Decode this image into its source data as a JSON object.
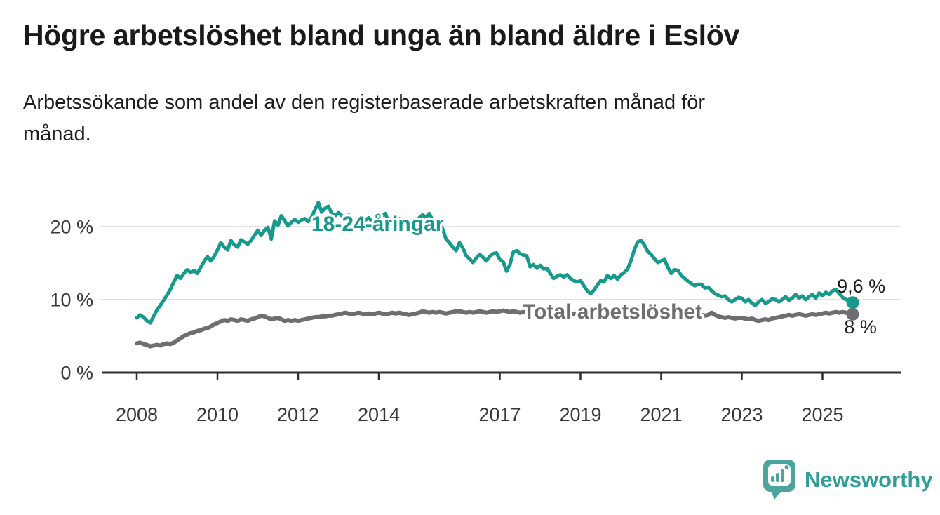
{
  "header": {
    "title": "Högre arbetslöshet bland unga än bland äldre i Eslöv",
    "subtitle_lines": [
      "Arbetssökande som andel av den registerbaserade arbetskraften månad för",
      "månad."
    ]
  },
  "chart_data": {
    "type": "line",
    "unit": "%",
    "grid": "horizontal",
    "x_axis": {
      "range_start": 2008.0,
      "range_end": 2025.75,
      "ticks": [
        {
          "year": 2008,
          "label": "2008"
        },
        {
          "year": 2010,
          "label": "2010"
        },
        {
          "year": 2012,
          "label": "2012"
        },
        {
          "year": 2014,
          "label": "2014"
        },
        {
          "year": 2017,
          "label": "2017"
        },
        {
          "year": 2019,
          "label": "2019"
        },
        {
          "year": 2021,
          "label": "2021"
        },
        {
          "year": 2023,
          "label": "2023"
        },
        {
          "year": 2025,
          "label": "2025"
        }
      ]
    },
    "y_axis": {
      "min": 0,
      "max": 24,
      "ticks": [
        {
          "value": 0,
          "label": "0 %"
        },
        {
          "value": 10,
          "label": "10 %"
        },
        {
          "value": 20,
          "label": "20 %"
        }
      ]
    },
    "series": [
      {
        "name": "18-24-åringar",
        "color": "#17998c",
        "end_label": "9,6 %",
        "end_value": 9.6,
        "start_year": 2008.0,
        "points_per_year": 12,
        "values": [
          7.5,
          7.9,
          7.6,
          7.1,
          6.8,
          7.7,
          8.6,
          9.2,
          9.9,
          10.6,
          11.4,
          12.4,
          13.3,
          12.9,
          13.6,
          14.1,
          13.7,
          14.0,
          13.6,
          14.4,
          15.2,
          15.9,
          15.3,
          15.9,
          16.8,
          17.8,
          17.2,
          16.8,
          18.1,
          17.5,
          17.2,
          18.2,
          17.9,
          17.6,
          18.1,
          18.8,
          19.5,
          18.8,
          19.5,
          19.9,
          18.3,
          20.8,
          20.2,
          21.5,
          20.8,
          20.1,
          20.6,
          21.0,
          20.6,
          20.9,
          21.1,
          20.7,
          21.3,
          22.3,
          23.3,
          22.0,
          22.5,
          22.8,
          21.8,
          21.5,
          21.9,
          21.5,
          21.2,
          21.6,
          20.3,
          19.8,
          21.0,
          20.4,
          20.9,
          21.2,
          20.7,
          19.3,
          21.1,
          21.5,
          21.8,
          20.3,
          19.6,
          20.7,
          21.1,
          20.8,
          21.0,
          20.5,
          19.7,
          19.2,
          21.2,
          21.6,
          21.3,
          21.8,
          20.9,
          20.5,
          20.8,
          19.7,
          18.3,
          17.8,
          17.2,
          16.7,
          17.8,
          17.1,
          16.0,
          15.6,
          15.1,
          15.7,
          16.2,
          15.8,
          15.3,
          15.9,
          16.3,
          16.4,
          15.5,
          15.2,
          13.9,
          14.8,
          16.5,
          16.7,
          16.3,
          16.1,
          16.0,
          14.5,
          14.8,
          14.3,
          14.7,
          14.2,
          14.3,
          13.6,
          12.9,
          13.2,
          13.4,
          13.1,
          13.4,
          12.9,
          12.6,
          12.4,
          12.6,
          11.9,
          11.2,
          10.8,
          11.3,
          12.0,
          12.6,
          12.4,
          13.3,
          12.9,
          13.3,
          12.8,
          13.4,
          13.7,
          14.2,
          15.3,
          16.8,
          17.9,
          18.1,
          17.5,
          16.6,
          16.2,
          15.6,
          15.1,
          15.3,
          15.5,
          14.4,
          13.6,
          14.1,
          14.0,
          13.3,
          12.9,
          12.5,
          12.2,
          11.9,
          12.1,
          12.1,
          11.6,
          11.7,
          11.2,
          10.8,
          10.6,
          10.4,
          10.5,
          10.0,
          9.7,
          10.0,
          10.3,
          10.2,
          9.7,
          10.0,
          9.5,
          9.2,
          9.7,
          10.0,
          9.5,
          9.7,
          10.1,
          10.0,
          9.7,
          10.0,
          10.4,
          9.9,
          10.2,
          10.7,
          10.2,
          10.5,
          10.0,
          10.4,
          10.7,
          10.2,
          10.9,
          10.5,
          11.0,
          10.7,
          11.2,
          11.4,
          10.8,
          10.3,
          10.0,
          9.9,
          9.6
        ]
      },
      {
        "name": "Total arbetslöshet",
        "color": "#6e6e72",
        "end_label": "8 %",
        "end_value": 8.0,
        "start_year": 2008.0,
        "points_per_year": 12,
        "values": [
          4.0,
          4.1,
          3.9,
          3.8,
          3.6,
          3.7,
          3.8,
          3.7,
          3.9,
          4.0,
          3.9,
          4.1,
          4.4,
          4.7,
          5.0,
          5.2,
          5.4,
          5.5,
          5.7,
          5.8,
          6.0,
          6.1,
          6.3,
          6.6,
          6.8,
          7.0,
          7.2,
          7.1,
          7.3,
          7.2,
          7.1,
          7.3,
          7.2,
          7.1,
          7.3,
          7.4,
          7.6,
          7.8,
          7.7,
          7.5,
          7.3,
          7.4,
          7.5,
          7.3,
          7.1,
          7.2,
          7.1,
          7.2,
          7.1,
          7.2,
          7.3,
          7.4,
          7.5,
          7.6,
          7.6,
          7.7,
          7.7,
          7.8,
          7.8,
          7.9,
          8.0,
          8.1,
          8.2,
          8.1,
          8.0,
          8.1,
          8.2,
          8.1,
          8.0,
          8.1,
          8.0,
          8.1,
          8.2,
          8.1,
          8.0,
          8.1,
          8.2,
          8.1,
          8.2,
          8.1,
          8.0,
          7.9,
          8.0,
          8.1,
          8.2,
          8.4,
          8.3,
          8.2,
          8.3,
          8.2,
          8.3,
          8.2,
          8.1,
          8.2,
          8.3,
          8.4,
          8.4,
          8.3,
          8.2,
          8.3,
          8.2,
          8.3,
          8.4,
          8.3,
          8.2,
          8.3,
          8.4,
          8.3,
          8.4,
          8.5,
          8.4,
          8.3,
          8.4,
          8.3,
          8.2,
          8.3,
          8.2,
          8.1,
          8.2,
          8.3,
          8.3,
          8.2,
          8.3,
          8.2,
          8.1,
          8.2,
          8.3,
          8.2,
          8.1,
          8.0,
          8.1,
          8.0,
          8.0,
          7.9,
          7.8,
          7.9,
          8.0,
          7.9,
          8.0,
          7.9,
          7.8,
          7.9,
          7.8,
          7.9,
          8.0,
          8.2,
          8.4,
          8.6,
          8.8,
          8.8,
          8.7,
          8.6,
          8.5,
          8.4,
          8.4,
          8.5,
          8.5,
          8.4,
          8.3,
          8.2,
          8.1,
          8.1,
          8.0,
          8.0,
          7.9,
          7.9,
          7.8,
          7.9,
          7.9,
          7.8,
          7.9,
          8.2,
          7.9,
          7.7,
          7.6,
          7.5,
          7.6,
          7.5,
          7.4,
          7.5,
          7.5,
          7.4,
          7.3,
          7.4,
          7.2,
          7.1,
          7.2,
          7.3,
          7.2,
          7.4,
          7.5,
          7.6,
          7.7,
          7.8,
          7.9,
          7.8,
          7.9,
          8.0,
          7.9,
          7.8,
          7.9,
          8.0,
          7.9,
          8.0,
          8.1,
          8.2,
          8.1,
          8.2,
          8.3,
          8.2,
          8.3,
          8.2,
          8.1,
          8.0
        ]
      }
    ]
  },
  "footer": {
    "brand": "Newsworthy",
    "text_color": "#2f9e99",
    "icon_color": "#4ba49d"
  },
  "colors": {
    "background": "#ffffff",
    "title_text": "#1a1a18",
    "tick_text": "#383838",
    "gridline": "#d9d9d9",
    "axis": "#2e2e2e"
  }
}
